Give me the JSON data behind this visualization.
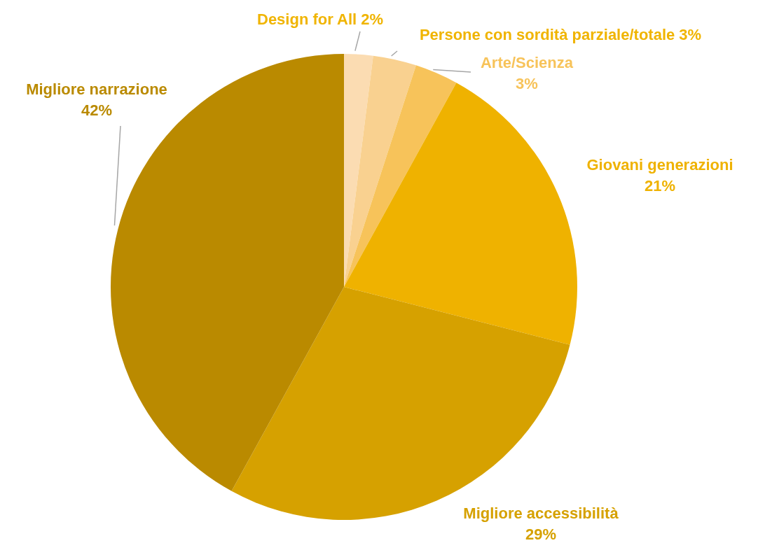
{
  "chart_data": {
    "type": "pie",
    "categories": [
      "Design for All",
      "Persone con sordità parziale/totale",
      "Arte/Scienza",
      "Giovani generazioni",
      "Migliore accessibilità",
      "Migliore narrazione"
    ],
    "values": [
      2,
      3,
      3,
      21,
      29,
      42
    ],
    "colors": [
      "#fbdcb2",
      "#f9d190",
      "#f7c35a",
      "#efb200",
      "#d6a100",
      "#ba8a00"
    ],
    "value_labels": [
      "2%",
      "3%",
      "3%",
      "21%",
      "29%",
      "42%"
    ]
  }
}
